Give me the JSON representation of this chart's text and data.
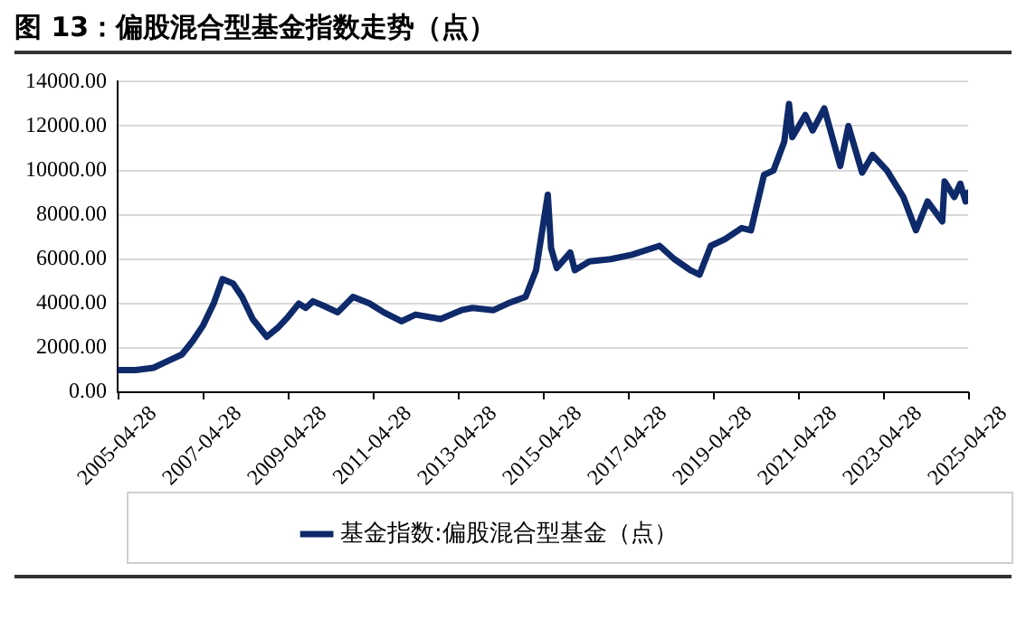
{
  "chart_data": {
    "type": "line",
    "title": "图 13：偏股混合型基金指数走势（点）",
    "x": [
      "2005-04-28",
      "2005-10-01",
      "2006-03-01",
      "2006-07-01",
      "2006-11-01",
      "2007-02-01",
      "2007-05-01",
      "2007-08-01",
      "2007-10-15",
      "2008-01-15",
      "2008-04-01",
      "2008-07-01",
      "2008-10-30",
      "2009-02-01",
      "2009-05-01",
      "2009-08-01",
      "2009-09-30",
      "2009-12-01",
      "2010-03-01",
      "2010-07-01",
      "2010-11-10",
      "2011-04-01",
      "2011-08-01",
      "2011-12-30",
      "2012-05-01",
      "2012-12-01",
      "2013-05-30",
      "2013-09-01",
      "2014-03-01",
      "2014-07-01",
      "2014-12-01",
      "2015-03-01",
      "2015-06-10",
      "2015-07-08",
      "2015-08-26",
      "2015-12-20",
      "2016-01-28",
      "2016-06-01",
      "2016-12-01",
      "2017-06-01",
      "2018-01-25",
      "2018-06-01",
      "2018-10-18",
      "2019-01-03",
      "2019-04-10",
      "2019-08-10",
      "2019-12-31",
      "2020-03-20",
      "2020-07-10",
      "2020-09-30",
      "2020-12-31",
      "2021-02-10",
      "2021-03-10",
      "2021-06-30",
      "2021-09-01",
      "2021-12-10",
      "2022-04-26",
      "2022-07-05",
      "2022-10-31",
      "2023-01-28",
      "2023-06-01",
      "2023-10-20",
      "2024-02-05",
      "2024-05-15",
      "2024-09-18",
      "2024-10-08",
      "2024-12-31",
      "2025-02-20",
      "2025-04-07",
      "2025-04-28"
    ],
    "series": [
      {
        "name": "基金指数:偏股混合型基金（点）",
        "color": "#0e2a6a",
        "values": [
          1000,
          1000,
          1100,
          1400,
          1700,
          2300,
          3000,
          4000,
          5100,
          4900,
          4300,
          3300,
          2500,
          2900,
          3400,
          4000,
          3800,
          4100,
          3900,
          3600,
          4300,
          4000,
          3600,
          3200,
          3500,
          3300,
          3700,
          3800,
          3700,
          4000,
          4300,
          5500,
          8900,
          6500,
          5600,
          6300,
          5500,
          5900,
          6000,
          6200,
          6600,
          6000,
          5500,
          5300,
          6600,
          6900,
          7400,
          7300,
          9800,
          10000,
          11300,
          13000,
          11500,
          12500,
          11800,
          12800,
          10200,
          12000,
          9900,
          10700,
          10000,
          8800,
          7300,
          8600,
          7700,
          9500,
          8800,
          9400,
          8600,
          9000
        ]
      }
    ],
    "xlim": [
      "2005-04-28",
      "2025-04-28"
    ],
    "xticks": [
      "2005-04-28",
      "2007-04-28",
      "2009-04-28",
      "2011-04-28",
      "2013-04-28",
      "2015-04-28",
      "2017-04-28",
      "2019-04-28",
      "2021-04-28",
      "2023-04-28",
      "2025-04-28"
    ],
    "ylim": [
      0,
      14000
    ],
    "yticks": [
      {
        "value": 0,
        "label": "0.00"
      },
      {
        "value": 2000,
        "label": "2000.00"
      },
      {
        "value": 4000,
        "label": "4000.00"
      },
      {
        "value": 6000,
        "label": "6000.00"
      },
      {
        "value": 8000,
        "label": "8000.00"
      },
      {
        "value": 10000,
        "label": "10000.00"
      },
      {
        "value": 12000,
        "label": "12000.00"
      },
      {
        "value": 14000,
        "label": "14000.00"
      }
    ],
    "grid": "y",
    "legend": "bottom",
    "marker": "none",
    "line_style": "solid"
  }
}
